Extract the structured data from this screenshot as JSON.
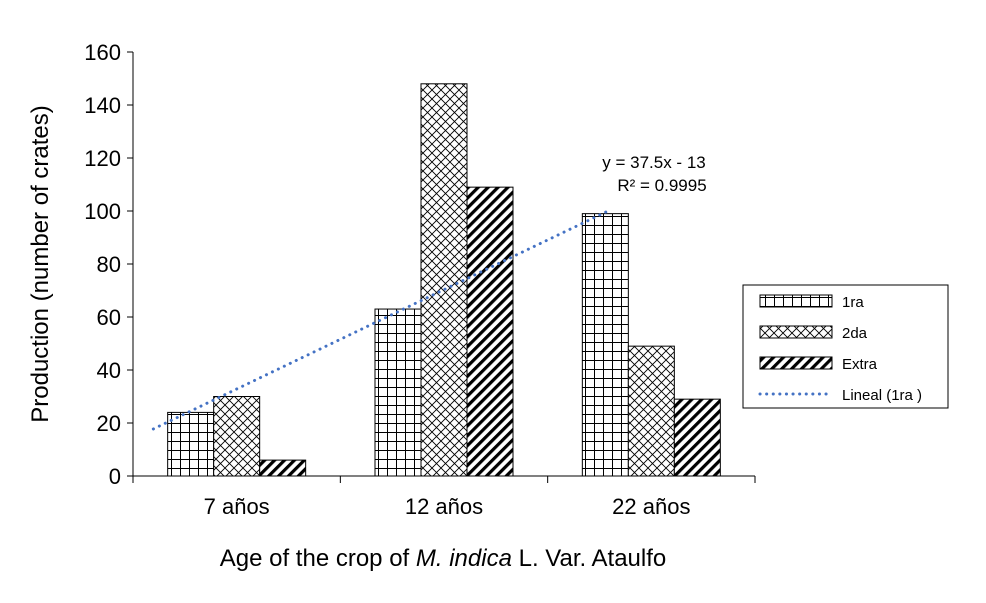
{
  "chart_data": {
    "type": "bar",
    "categories": [
      "7 años",
      "12 años",
      "22 años"
    ],
    "series": [
      {
        "name": "1ra",
        "values": [
          24,
          63,
          99
        ],
        "pattern": "grid"
      },
      {
        "name": "2da",
        "values": [
          30,
          148,
          49
        ],
        "pattern": "diamond"
      },
      {
        "name": "Extra",
        "values": [
          6,
          109,
          29
        ],
        "pattern": "diagonal"
      }
    ],
    "trendline": {
      "name": "Lineal (1ra )",
      "series": "1ra",
      "slope": 37.5,
      "intercept": -13,
      "equation": "y = 37.5x - 13",
      "r2": "R² = 0.9995",
      "color": "#4472c4",
      "style": "dotted"
    },
    "xlabel": {
      "before": "Age of the crop of ",
      "italic": "M. indica",
      "after": " L. Var. Ataulfo"
    },
    "ylabel": "Production (number of crates)",
    "ylim": [
      0,
      160
    ],
    "yticks": [
      0,
      20,
      40,
      60,
      80,
      100,
      120,
      140,
      160
    ],
    "grid": false,
    "legend_position": "right",
    "colors": {
      "bar_stroke": "#000000",
      "pattern": "#000000",
      "background": "#ffffff"
    }
  }
}
